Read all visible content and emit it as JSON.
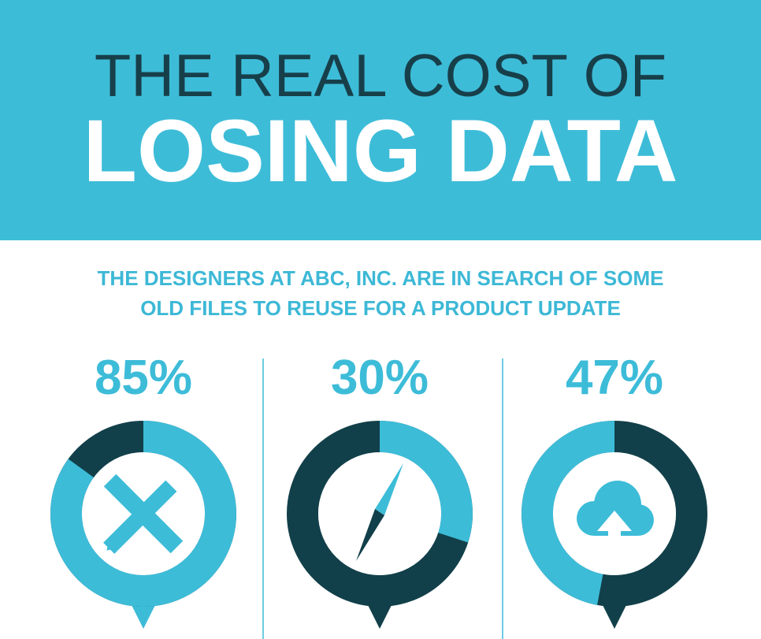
{
  "header": {
    "title_line1": "THE REAL COST OF",
    "title_line2": "LOSING DATA"
  },
  "subtitle": [
    "THE DESIGNERS AT ABC, INC. ARE IN SEARCH OF SOME",
    "OLD FILES TO REUSE FOR A PRODUCT UPDATE"
  ],
  "stats": {
    "values": [
      85,
      30,
      47
    ],
    "value_labels": [
      "85%",
      "30%",
      "47%"
    ],
    "directions": [
      "clockwise",
      "clockwise",
      "counterclockwise"
    ],
    "color": "#3dbcd8",
    "rest_color": "#12404a"
  }
}
